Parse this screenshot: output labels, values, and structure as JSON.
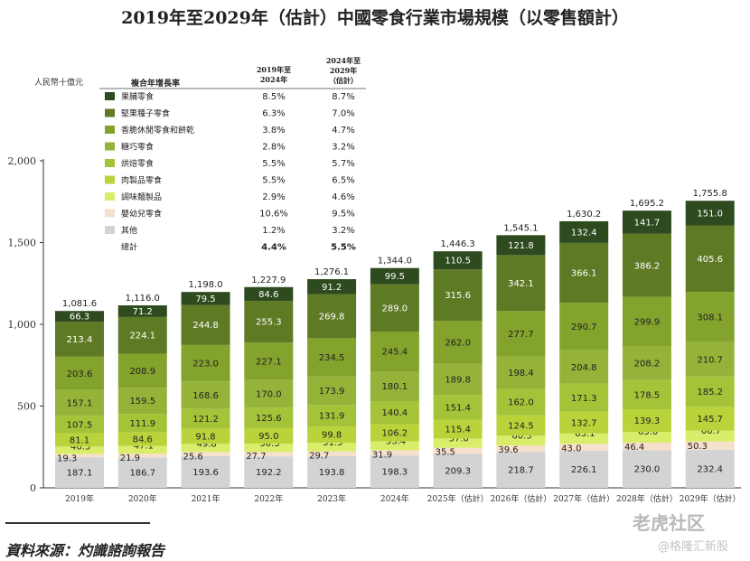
{
  "chart_data": {
    "type": "bar",
    "stacked": true,
    "title": "2019年至2029年（估計）中國零食行業市場規模（以零售額計）",
    "ylabel": "人民幣十億元",
    "ylim": [
      0,
      2000
    ],
    "yticks": [
      0,
      500,
      1000,
      1500,
      2000
    ],
    "ytick_labels": [
      "0",
      "500",
      "1,000",
      "1,500",
      "2,000"
    ],
    "categories": [
      "2019年",
      "2020年",
      "2021年",
      "2022年",
      "2023年",
      "2024年",
      "2025年（估計）",
      "2026年（估計）",
      "2027年（估計）",
      "2028年（估計）",
      "2029年（估計）"
    ],
    "totals": [
      "1,081.6",
      "1,116.0",
      "1,198.0",
      "1,227.9",
      "1,276.1",
      "1,344.0",
      "1,446.3",
      "1,545.1",
      "1,630.2",
      "1,695.2",
      "1,755.8"
    ],
    "series": [
      {
        "name": "其他",
        "color": "#d3d3d3",
        "values": [
          187.1,
          186.7,
          193.6,
          192.2,
          193.8,
          198.3,
          209.3,
          218.7,
          226.1,
          230.0,
          232.4
        ],
        "labels": [
          "187.1",
          "186.7",
          "193.6",
          "192.2",
          "193.8",
          "198.3",
          "209.3",
          "218.7",
          "226.1",
          "230.0",
          "232.4"
        ]
      },
      {
        "name": "嬰幼兒零食",
        "color": "#f6e0cc",
        "values": [
          19.3,
          21.9,
          25.6,
          27.7,
          29.7,
          31.9,
          35.5,
          39.6,
          43.0,
          46.4,
          50.3
        ],
        "labels": [
          "19.3",
          "21.9",
          "25.6",
          "27.7",
          "29.7",
          "31.9",
          "35.5",
          "39.6",
          "43.0",
          "46.4",
          "50.3"
        ]
      },
      {
        "name": "調味麵製品",
        "color": "#d9ed6a",
        "values": [
          46.3,
          47.1,
          49.8,
          50.3,
          51.5,
          53.4,
          57.0,
          60.3,
          63.1,
          65.0,
          66.7
        ],
        "labels": [
          "46.3",
          "47.1",
          "49.8",
          "50.3",
          "51.5",
          "53.4",
          "57.0",
          "60.3",
          "63.1",
          "65.0",
          "66.7"
        ]
      },
      {
        "name": "肉製品零食",
        "color": "#b9d43a",
        "values": [
          81.1,
          84.6,
          91.8,
          95.0,
          99.8,
          106.2,
          115.4,
          124.5,
          132.7,
          139.3,
          145.7
        ],
        "labels": [
          "81.1",
          "84.6",
          "91.8",
          "95.0",
          "99.8",
          "106.2",
          "115.4",
          "124.5",
          "132.7",
          "139.3",
          "145.7"
        ]
      },
      {
        "name": "烘焙零食",
        "color": "#a5c338",
        "values": [
          107.5,
          111.9,
          121.2,
          125.6,
          131.9,
          140.4,
          151.4,
          162.0,
          171.3,
          178.5,
          185.2
        ],
        "labels": [
          "107.5",
          "111.9",
          "121.2",
          "125.6",
          "131.9",
          "140.4",
          "151.4",
          "162.0",
          "171.3",
          "178.5",
          "185.2"
        ]
      },
      {
        "name": "糖巧零食",
        "color": "#95b339",
        "values": [
          157.1,
          159.5,
          168.6,
          170.0,
          173.9,
          180.1,
          189.8,
          198.4,
          204.8,
          208.2,
          210.7
        ],
        "labels": [
          "157.1",
          "159.5",
          "168.6",
          "170.0",
          "173.9",
          "180.1",
          "189.8",
          "198.4",
          "204.8",
          "208.2",
          "210.7"
        ]
      },
      {
        "name": "香脆休閒零食和餅乾",
        "color": "#83a32d",
        "values": [
          203.6,
          208.9,
          223.0,
          227.1,
          234.5,
          245.4,
          262.0,
          277.7,
          290.7,
          299.9,
          308.1
        ],
        "labels": [
          "203.6",
          "208.9",
          "223.0",
          "227.1",
          "234.5",
          "245.4",
          "262.0",
          "277.7",
          "290.7",
          "299.9",
          "308.1"
        ]
      },
      {
        "name": "堅果種子零食",
        "color": "#5f7a24",
        "values": [
          213.4,
          224.1,
          244.8,
          255.3,
          269.8,
          289.0,
          315.6,
          342.1,
          366.1,
          386.2,
          405.6
        ],
        "labels": [
          "213.4",
          "224.1",
          "244.8",
          "255.3",
          "269.8",
          "289.0",
          "315.6",
          "342.1",
          "366.1",
          "386.2",
          "405.6"
        ]
      },
      {
        "name": "果脯零食",
        "color": "#2e4a1f",
        "values": [
          66.3,
          71.2,
          79.5,
          84.6,
          91.2,
          99.5,
          110.5,
          121.8,
          132.4,
          141.7,
          151.0
        ],
        "labels": [
          "66.3",
          "71.2",
          "79.5",
          "84.6",
          "91.2",
          "99.5",
          "110.5",
          "121.8",
          "132.4",
          "141.7",
          "151.0"
        ]
      }
    ],
    "cagr_table": {
      "header_label": "複合年增長率",
      "col1_header": "2019年至 2024年",
      "col2_header": "2024年至 2029年 （估計）",
      "rows": [
        {
          "name": "果脯零食",
          "color": "#2e4a1f",
          "c1": "8.5%",
          "c2": "8.7%"
        },
        {
          "name": "堅果種子零食",
          "color": "#5f7a24",
          "c1": "6.3%",
          "c2": "7.0%"
        },
        {
          "name": "香脆休閒零食和餅乾",
          "color": "#83a32d",
          "c1": "3.8%",
          "c2": "4.7%"
        },
        {
          "name": "糖巧零食",
          "color": "#95b339",
          "c1": "2.8%",
          "c2": "3.2%"
        },
        {
          "name": "烘焙零食",
          "color": "#a5c338",
          "c1": "5.5%",
          "c2": "5.7%"
        },
        {
          "name": "肉製品零食",
          "color": "#b9d43a",
          "c1": "5.5%",
          "c2": "6.5%"
        },
        {
          "name": "調味麵製品",
          "color": "#d9ed6a",
          "c1": "2.9%",
          "c2": "4.6%"
        },
        {
          "name": "嬰幼兒零食",
          "color": "#f6e0cc",
          "c1": "10.6%",
          "c2": "9.5%"
        },
        {
          "name": "其他",
          "color": "#d3d3d3",
          "c1": "1.2%",
          "c2": "3.2%"
        },
        {
          "name": "總計",
          "color": null,
          "c1": "4.4%",
          "c2": "5.5%"
        }
      ]
    }
  },
  "source": "資料來源：灼識諮詢報告",
  "watermark": "老虎社区",
  "watermark_sub": "@格隆汇新股"
}
